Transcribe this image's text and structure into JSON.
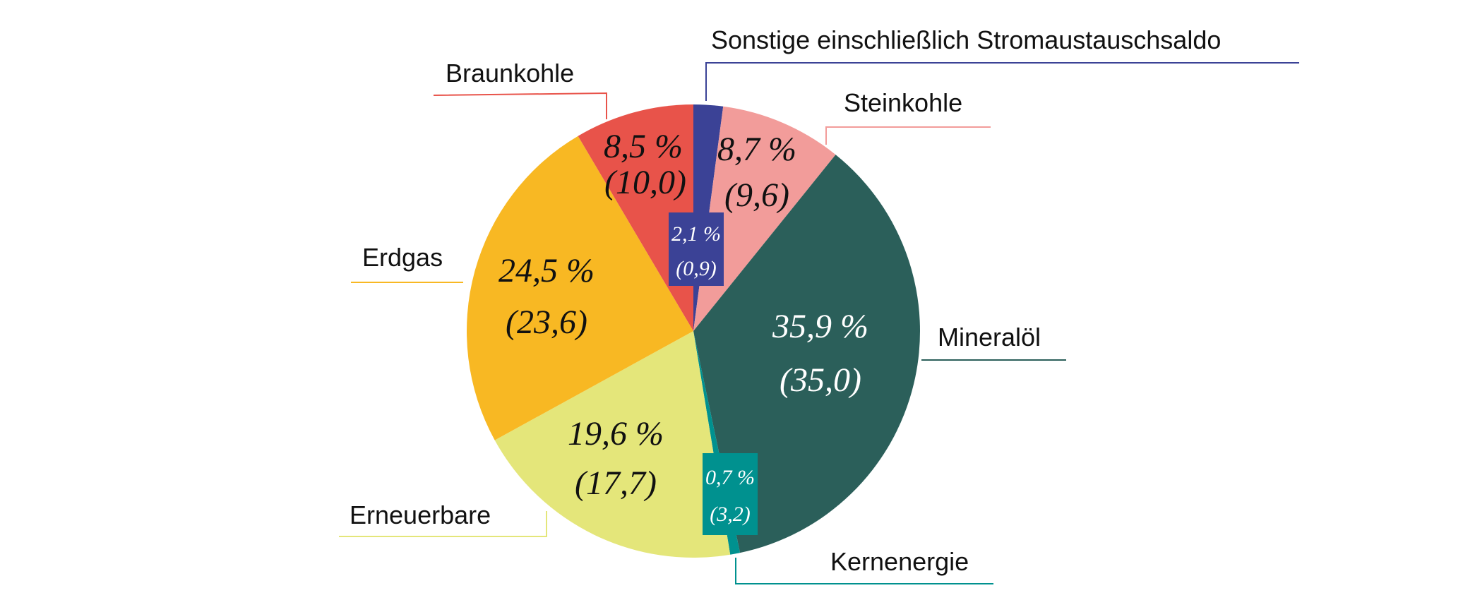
{
  "chart_data": {
    "type": "pie",
    "title": "",
    "start": "top",
    "direction": "clockwise",
    "slices": [
      {
        "label": "Sonstige einschließlich Stromaustauschsaldo",
        "value": 2.1,
        "value_text": "2,1 %",
        "prev_text": "(0,9)",
        "prev": 0.9,
        "color": "#3b4296",
        "text_color": "#ffffff"
      },
      {
        "label": "Steinkohle",
        "value": 8.7,
        "value_text": "8,7 %",
        "prev_text": "(9,6)",
        "prev": 9.6,
        "color": "#f29c9a",
        "text_color": "#111111"
      },
      {
        "label": "Mineralöl",
        "value": 35.9,
        "value_text": "35,9 %",
        "prev_text": "(35,0)",
        "prev": 35.0,
        "color": "#2b5f5a",
        "text_color": "#ffffff"
      },
      {
        "label": "Kernenergie",
        "value": 0.7,
        "value_text": "0,7 %",
        "prev_text": "(3,2)",
        "prev": 3.2,
        "color": "#00918f",
        "text_color": "#ffffff"
      },
      {
        "label": "Erneuerbare",
        "value": 19.6,
        "value_text": "19,6 %",
        "prev_text": "(17,7)",
        "prev": 17.7,
        "color": "#e4e67a",
        "text_color": "#111111"
      },
      {
        "label": "Erdgas",
        "value": 24.5,
        "value_text": "24,5 %",
        "prev_text": "(23,6)",
        "prev": 23.6,
        "color": "#f8b823",
        "text_color": "#111111"
      },
      {
        "label": "Braunkohle",
        "value": 8.5,
        "value_text": "8,5 %",
        "prev_text": "(10,0)",
        "prev": 10.0,
        "color": "#e8534a",
        "text_color": "#111111"
      }
    ]
  }
}
